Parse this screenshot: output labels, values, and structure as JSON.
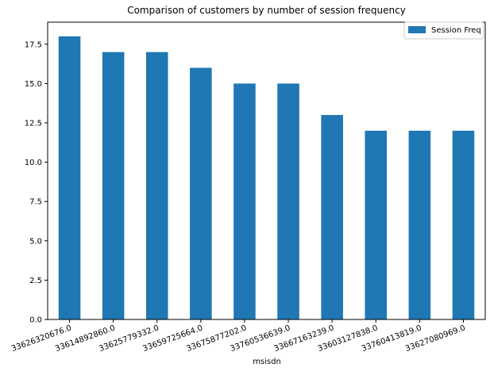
{
  "chart_data": {
    "type": "bar",
    "title": "Comparison of customers by number of session frequency",
    "xlabel": "msisdn",
    "ylabel": "",
    "categories": [
      "33626320676.0",
      "33614892860.0",
      "33625779332.0",
      "33659725664.0",
      "33675877202.0",
      "33760536639.0",
      "33667163239.0",
      "33603127838.0",
      "33760413819.0",
      "33627080969.0"
    ],
    "series": [
      {
        "name": "Session Freq",
        "values": [
          18,
          17,
          17,
          16,
          15,
          15,
          13,
          12,
          12,
          12
        ]
      }
    ],
    "ylim": [
      0,
      18.9
    ],
    "yticks": [
      "0.0",
      "2.5",
      "5.0",
      "7.5",
      "10.0",
      "12.5",
      "15.0",
      "17.5"
    ],
    "grid": false,
    "legend_position": "top-right",
    "colors": {
      "bar": "#1f77b4",
      "axis": "#000000"
    }
  }
}
